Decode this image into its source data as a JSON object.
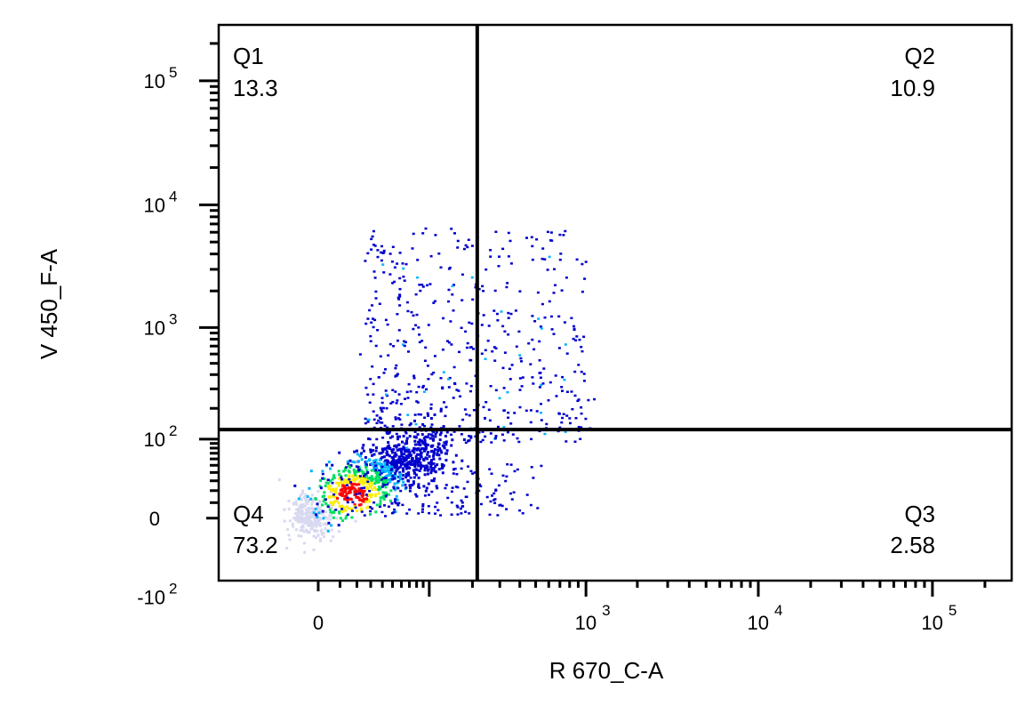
{
  "chart_data": {
    "type": "scatter",
    "title": "",
    "xlabel": "R 670_C-A",
    "ylabel": "V 450_F-A",
    "x_scale": "biexponential",
    "y_scale": "biexponential",
    "x_ticks": [
      {
        "value": 0,
        "base": "0",
        "exp": ""
      },
      {
        "value": 1000,
        "base": "10",
        "exp": "3"
      },
      {
        "value": 10000,
        "base": "10",
        "exp": "4"
      },
      {
        "value": 100000,
        "base": "10",
        "exp": "5"
      }
    ],
    "y_ticks": [
      {
        "value": 100000,
        "base": "10",
        "exp": "5"
      },
      {
        "value": 10000,
        "base": "10",
        "exp": "4"
      },
      {
        "value": 1000,
        "base": "10",
        "exp": "3"
      },
      {
        "value": 100,
        "base": "10",
        "exp": "2"
      },
      {
        "value": 0,
        "base": "0",
        "exp": ""
      },
      {
        "value": -100,
        "base": "-10",
        "exp": "2"
      }
    ],
    "gate": {
      "x": 215,
      "y": 125
    },
    "quadrants": [
      {
        "name": "Q1",
        "value": "13.3",
        "position": "top-left"
      },
      {
        "name": "Q2",
        "value": "10.9",
        "position": "top-right"
      },
      {
        "name": "Q3",
        "value": "2.58",
        "position": "bottom-right"
      },
      {
        "name": "Q4",
        "value": "73.2",
        "position": "bottom-left"
      }
    ],
    "density_colors": [
      "#d8d8f0",
      "#0000cc",
      "#00b4ff",
      "#00e060",
      "#ffee00",
      "#ff0000"
    ]
  }
}
